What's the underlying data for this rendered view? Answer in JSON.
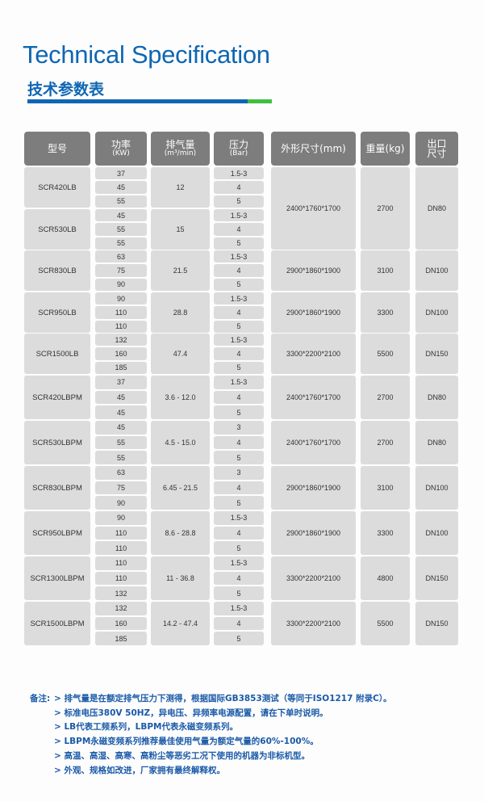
{
  "header": {
    "title": "Technical Specification",
    "subtitle": "技术参数表"
  },
  "colors": {
    "accent": "#0f66b3",
    "accent2": "#3fbf3f",
    "header_bg": "#7d7d7d",
    "cell_bg": "#dcdcdc"
  },
  "table": {
    "columns": [
      {
        "label": "型号",
        "unit": ""
      },
      {
        "label": "功率",
        "unit": "(KW)"
      },
      {
        "label": "排气量",
        "unit": "(m³/min)"
      },
      {
        "label": "压力",
        "unit": "(Bar)"
      },
      {
        "label": "外形尺寸(mm)",
        "unit": ""
      },
      {
        "label": "重量(kg)",
        "unit": ""
      },
      {
        "label": "出口",
        "unit": "尺寸"
      }
    ],
    "blocks": [
      {
        "dims": "2400*1760*1700",
        "weight": "2700",
        "outlet": "DN80",
        "models": [
          {
            "model": "SCR420LB",
            "power": [
              "37",
              "45",
              "55"
            ],
            "flow": "12",
            "pressure": [
              "1.5-3",
              "4",
              "5"
            ]
          },
          {
            "model": "SCR530LB",
            "power": [
              "45",
              "55",
              "55"
            ],
            "flow": "15",
            "pressure": [
              "1.5-3",
              "4",
              "5"
            ]
          }
        ]
      },
      {
        "dims": "2900*1860*1900",
        "weight": "3100",
        "outlet": "DN100",
        "models": [
          {
            "model": "SCR830LB",
            "power": [
              "63",
              "75",
              "90"
            ],
            "flow": "21.5",
            "pressure": [
              "1.5-3",
              "4",
              "5"
            ]
          }
        ]
      },
      {
        "dims": "2900*1860*1900",
        "weight": "3300",
        "outlet": "DN100",
        "models": [
          {
            "model": "SCR950LB",
            "power": [
              "90",
              "110",
              "110"
            ],
            "flow": "28.8",
            "pressure": [
              "1.5-3",
              "4",
              "5"
            ]
          }
        ]
      },
      {
        "dims": "3300*2200*2100",
        "weight": "5500",
        "outlet": "DN150",
        "models": [
          {
            "model": "SCR1500LB",
            "power": [
              "132",
              "160",
              "185"
            ],
            "flow": "47.4",
            "pressure": [
              "1.5-3",
              "4",
              "5"
            ]
          }
        ]
      },
      {
        "dims": "2400*1760*1700",
        "weight": "2700",
        "outlet": "DN80",
        "models": [
          {
            "model": "SCR420LBPM",
            "power": [
              "37",
              "45",
              "45"
            ],
            "flow": "3.6 - 12.0",
            "pressure": [
              "1.5-3",
              "4",
              "5"
            ]
          }
        ]
      },
      {
        "dims": "2400*1760*1700",
        "weight": "2700",
        "outlet": "DN80",
        "models": [
          {
            "model": "SCR530LBPM",
            "power": [
              "45",
              "55",
              "55"
            ],
            "flow": "4.5 - 15.0",
            "pressure": [
              "3",
              "4",
              "5"
            ]
          }
        ]
      },
      {
        "dims": "2900*1860*1900",
        "weight": "3100",
        "outlet": "DN100",
        "models": [
          {
            "model": "SCR830LBPM",
            "power": [
              "63",
              "75",
              "90"
            ],
            "flow": "6.45 - 21.5",
            "pressure": [
              "3",
              "4",
              "5"
            ]
          }
        ]
      },
      {
        "dims": "2900*1860*1900",
        "weight": "3300",
        "outlet": "DN100",
        "models": [
          {
            "model": "SCR950LBPM",
            "power": [
              "90",
              "110",
              "110"
            ],
            "flow": "8.6 - 28.8",
            "pressure": [
              "1.5-3",
              "4",
              "5"
            ]
          }
        ]
      },
      {
        "dims": "3300*2200*2100",
        "weight": "4800",
        "outlet": "DN150",
        "models": [
          {
            "model": "SCR1300LBPM",
            "power": [
              "110",
              "110",
              "132"
            ],
            "flow": "11 - 36.8",
            "pressure": [
              "1.5-3",
              "4",
              "5"
            ]
          }
        ]
      },
      {
        "dims": "3300*2200*2100",
        "weight": "5500",
        "outlet": "DN150",
        "models": [
          {
            "model": "SCR1500LBPM",
            "power": [
              "132",
              "160",
              "185"
            ],
            "flow": "14.2 - 47.4",
            "pressure": [
              "1.5-3",
              "4",
              "5"
            ]
          }
        ]
      }
    ]
  },
  "notes": {
    "label": "备注:",
    "items": [
      "> 排气量是在额定排气压力下测得，根据国际GB3853测试（等同于ISO1217 附录C）。",
      "> 标准电压380V 50HZ，异电压、异频率电源配置，请在下单时说明。",
      "> LB代表工频系列，LBPM代表永磁变频系列。",
      "> LBPM永磁变频系列推荐最佳使用气量为额定气量的60%-100%。",
      "> 高温、高湿、高寒、高粉尘等恶劣工况下使用的机器为非标机型。",
      "> 外观、规格如改进，厂家拥有最终解释权。"
    ]
  }
}
